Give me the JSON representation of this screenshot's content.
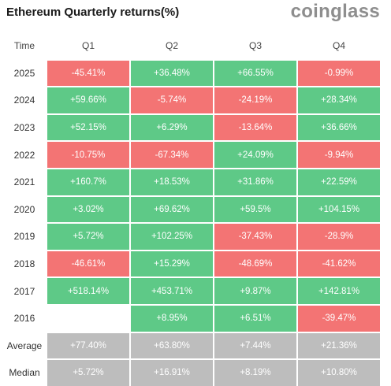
{
  "title": "Ethereum Quarterly returns(%)",
  "brand": "coinglass",
  "colors": {
    "positive": "#5ec987",
    "negative": "#f37474",
    "summary": "#bdbdbd"
  },
  "table": {
    "headers": [
      "Time",
      "Q1",
      "Q2",
      "Q3",
      "Q4"
    ],
    "rows": [
      {
        "label": "2025",
        "cells": [
          "-45.41%",
          "+36.48%",
          "+66.55%",
          "-0.99%"
        ],
        "kinds": [
          "neg",
          "pos",
          "pos",
          "neg"
        ]
      },
      {
        "label": "2024",
        "cells": [
          "+59.66%",
          "-5.74%",
          "-24.19%",
          "+28.34%"
        ],
        "kinds": [
          "pos",
          "neg",
          "neg",
          "pos"
        ]
      },
      {
        "label": "2023",
        "cells": [
          "+52.15%",
          "+6.29%",
          "-13.64%",
          "+36.66%"
        ],
        "kinds": [
          "pos",
          "pos",
          "neg",
          "pos"
        ]
      },
      {
        "label": "2022",
        "cells": [
          "-10.75%",
          "-67.34%",
          "+24.09%",
          "-9.94%"
        ],
        "kinds": [
          "neg",
          "neg",
          "pos",
          "neg"
        ]
      },
      {
        "label": "2021",
        "cells": [
          "+160.7%",
          "+18.53%",
          "+31.86%",
          "+22.59%"
        ],
        "kinds": [
          "pos",
          "pos",
          "pos",
          "pos"
        ]
      },
      {
        "label": "2020",
        "cells": [
          "+3.02%",
          "+69.62%",
          "+59.5%",
          "+104.15%"
        ],
        "kinds": [
          "pos",
          "pos",
          "pos",
          "pos"
        ]
      },
      {
        "label": "2019",
        "cells": [
          "+5.72%",
          "+102.25%",
          "-37.43%",
          "-28.9%"
        ],
        "kinds": [
          "pos",
          "pos",
          "neg",
          "neg"
        ]
      },
      {
        "label": "2018",
        "cells": [
          "-46.61%",
          "+15.29%",
          "-48.69%",
          "-41.62%"
        ],
        "kinds": [
          "neg",
          "pos",
          "neg",
          "neg"
        ]
      },
      {
        "label": "2017",
        "cells": [
          "+518.14%",
          "+453.71%",
          "+9.87%",
          "+142.81%"
        ],
        "kinds": [
          "pos",
          "pos",
          "pos",
          "pos"
        ]
      },
      {
        "label": "2016",
        "cells": [
          "",
          "+8.95%",
          "+6.51%",
          "-39.47%"
        ],
        "kinds": [
          "empty",
          "pos",
          "pos",
          "neg"
        ]
      },
      {
        "label": "Average",
        "cells": [
          "+77.40%",
          "+63.80%",
          "+7.44%",
          "+21.36%"
        ],
        "kinds": [
          "sum",
          "sum",
          "sum",
          "sum"
        ]
      },
      {
        "label": "Median",
        "cells": [
          "+5.72%",
          "+16.91%",
          "+8.19%",
          "+10.80%"
        ],
        "kinds": [
          "sum",
          "sum",
          "sum",
          "sum"
        ]
      }
    ]
  }
}
